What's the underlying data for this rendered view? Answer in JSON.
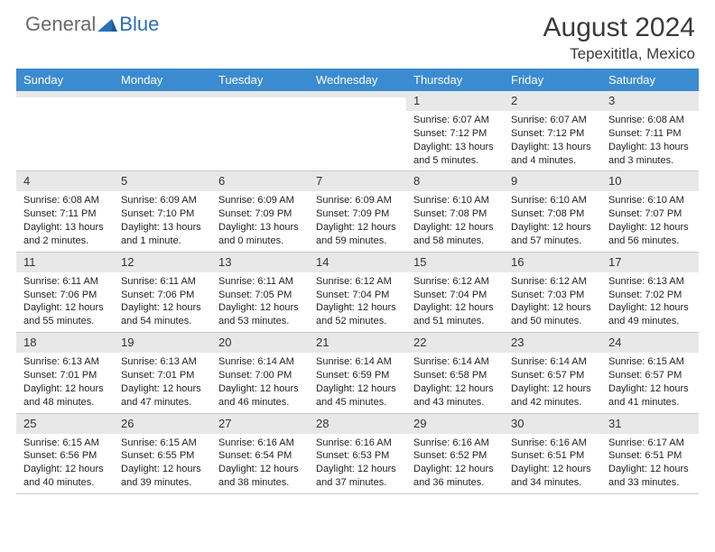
{
  "logo": {
    "general": "General",
    "blue": "Blue"
  },
  "title": "August 2024",
  "location": "Tepexititla, Mexico",
  "weekdays": [
    "Sunday",
    "Monday",
    "Tuesday",
    "Wednesday",
    "Thursday",
    "Friday",
    "Saturday"
  ],
  "colors": {
    "header_bar": "#3b8bd0",
    "daynum_bg": "#e8e8e8",
    "logo_gray": "#6a6a6a",
    "logo_blue": "#2a6fb5",
    "text": "#222222"
  },
  "rows": [
    [
      {
        "num": "",
        "sunrise": "",
        "sunset": "",
        "daylight": ""
      },
      {
        "num": "",
        "sunrise": "",
        "sunset": "",
        "daylight": ""
      },
      {
        "num": "",
        "sunrise": "",
        "sunset": "",
        "daylight": ""
      },
      {
        "num": "",
        "sunrise": "",
        "sunset": "",
        "daylight": ""
      },
      {
        "num": "1",
        "sunrise": "Sunrise: 6:07 AM",
        "sunset": "Sunset: 7:12 PM",
        "daylight": "Daylight: 13 hours and 5 minutes."
      },
      {
        "num": "2",
        "sunrise": "Sunrise: 6:07 AM",
        "sunset": "Sunset: 7:12 PM",
        "daylight": "Daylight: 13 hours and 4 minutes."
      },
      {
        "num": "3",
        "sunrise": "Sunrise: 6:08 AM",
        "sunset": "Sunset: 7:11 PM",
        "daylight": "Daylight: 13 hours and 3 minutes."
      }
    ],
    [
      {
        "num": "4",
        "sunrise": "Sunrise: 6:08 AM",
        "sunset": "Sunset: 7:11 PM",
        "daylight": "Daylight: 13 hours and 2 minutes."
      },
      {
        "num": "5",
        "sunrise": "Sunrise: 6:09 AM",
        "sunset": "Sunset: 7:10 PM",
        "daylight": "Daylight: 13 hours and 1 minute."
      },
      {
        "num": "6",
        "sunrise": "Sunrise: 6:09 AM",
        "sunset": "Sunset: 7:09 PM",
        "daylight": "Daylight: 13 hours and 0 minutes."
      },
      {
        "num": "7",
        "sunrise": "Sunrise: 6:09 AM",
        "sunset": "Sunset: 7:09 PM",
        "daylight": "Daylight: 12 hours and 59 minutes."
      },
      {
        "num": "8",
        "sunrise": "Sunrise: 6:10 AM",
        "sunset": "Sunset: 7:08 PM",
        "daylight": "Daylight: 12 hours and 58 minutes."
      },
      {
        "num": "9",
        "sunrise": "Sunrise: 6:10 AM",
        "sunset": "Sunset: 7:08 PM",
        "daylight": "Daylight: 12 hours and 57 minutes."
      },
      {
        "num": "10",
        "sunrise": "Sunrise: 6:10 AM",
        "sunset": "Sunset: 7:07 PM",
        "daylight": "Daylight: 12 hours and 56 minutes."
      }
    ],
    [
      {
        "num": "11",
        "sunrise": "Sunrise: 6:11 AM",
        "sunset": "Sunset: 7:06 PM",
        "daylight": "Daylight: 12 hours and 55 minutes."
      },
      {
        "num": "12",
        "sunrise": "Sunrise: 6:11 AM",
        "sunset": "Sunset: 7:06 PM",
        "daylight": "Daylight: 12 hours and 54 minutes."
      },
      {
        "num": "13",
        "sunrise": "Sunrise: 6:11 AM",
        "sunset": "Sunset: 7:05 PM",
        "daylight": "Daylight: 12 hours and 53 minutes."
      },
      {
        "num": "14",
        "sunrise": "Sunrise: 6:12 AM",
        "sunset": "Sunset: 7:04 PM",
        "daylight": "Daylight: 12 hours and 52 minutes."
      },
      {
        "num": "15",
        "sunrise": "Sunrise: 6:12 AM",
        "sunset": "Sunset: 7:04 PM",
        "daylight": "Daylight: 12 hours and 51 minutes."
      },
      {
        "num": "16",
        "sunrise": "Sunrise: 6:12 AM",
        "sunset": "Sunset: 7:03 PM",
        "daylight": "Daylight: 12 hours and 50 minutes."
      },
      {
        "num": "17",
        "sunrise": "Sunrise: 6:13 AM",
        "sunset": "Sunset: 7:02 PM",
        "daylight": "Daylight: 12 hours and 49 minutes."
      }
    ],
    [
      {
        "num": "18",
        "sunrise": "Sunrise: 6:13 AM",
        "sunset": "Sunset: 7:01 PM",
        "daylight": "Daylight: 12 hours and 48 minutes."
      },
      {
        "num": "19",
        "sunrise": "Sunrise: 6:13 AM",
        "sunset": "Sunset: 7:01 PM",
        "daylight": "Daylight: 12 hours and 47 minutes."
      },
      {
        "num": "20",
        "sunrise": "Sunrise: 6:14 AM",
        "sunset": "Sunset: 7:00 PM",
        "daylight": "Daylight: 12 hours and 46 minutes."
      },
      {
        "num": "21",
        "sunrise": "Sunrise: 6:14 AM",
        "sunset": "Sunset: 6:59 PM",
        "daylight": "Daylight: 12 hours and 45 minutes."
      },
      {
        "num": "22",
        "sunrise": "Sunrise: 6:14 AM",
        "sunset": "Sunset: 6:58 PM",
        "daylight": "Daylight: 12 hours and 43 minutes."
      },
      {
        "num": "23",
        "sunrise": "Sunrise: 6:14 AM",
        "sunset": "Sunset: 6:57 PM",
        "daylight": "Daylight: 12 hours and 42 minutes."
      },
      {
        "num": "24",
        "sunrise": "Sunrise: 6:15 AM",
        "sunset": "Sunset: 6:57 PM",
        "daylight": "Daylight: 12 hours and 41 minutes."
      }
    ],
    [
      {
        "num": "25",
        "sunrise": "Sunrise: 6:15 AM",
        "sunset": "Sunset: 6:56 PM",
        "daylight": "Daylight: 12 hours and 40 minutes."
      },
      {
        "num": "26",
        "sunrise": "Sunrise: 6:15 AM",
        "sunset": "Sunset: 6:55 PM",
        "daylight": "Daylight: 12 hours and 39 minutes."
      },
      {
        "num": "27",
        "sunrise": "Sunrise: 6:16 AM",
        "sunset": "Sunset: 6:54 PM",
        "daylight": "Daylight: 12 hours and 38 minutes."
      },
      {
        "num": "28",
        "sunrise": "Sunrise: 6:16 AM",
        "sunset": "Sunset: 6:53 PM",
        "daylight": "Daylight: 12 hours and 37 minutes."
      },
      {
        "num": "29",
        "sunrise": "Sunrise: 6:16 AM",
        "sunset": "Sunset: 6:52 PM",
        "daylight": "Daylight: 12 hours and 36 minutes."
      },
      {
        "num": "30",
        "sunrise": "Sunrise: 6:16 AM",
        "sunset": "Sunset: 6:51 PM",
        "daylight": "Daylight: 12 hours and 34 minutes."
      },
      {
        "num": "31",
        "sunrise": "Sunrise: 6:17 AM",
        "sunset": "Sunset: 6:51 PM",
        "daylight": "Daylight: 12 hours and 33 minutes."
      }
    ]
  ]
}
